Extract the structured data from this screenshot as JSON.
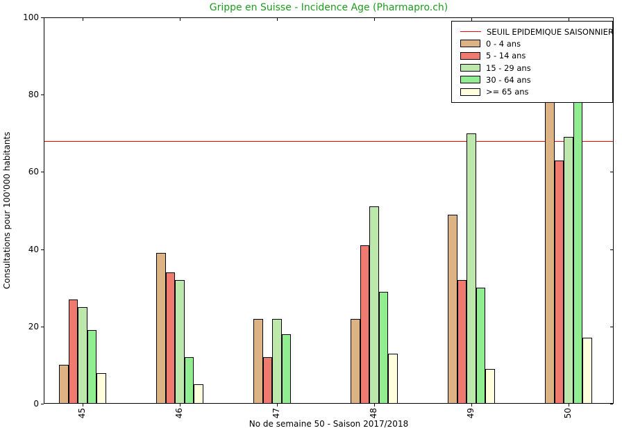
{
  "window": {
    "title": "Grippe en Suisse - Incidence Age (Pharmapro.ch)",
    "title_color": "#1e9b1e"
  },
  "chart_data": {
    "type": "bar",
    "title": "Grippe en Suisse - Incidence Age (Pharmapro.ch)",
    "xlabel": "No de semaine 50 - Saison 2017/2018",
    "ylabel": "Consultations pour 100'000 habitants",
    "categories": [
      "45",
      "46",
      "47",
      "48",
      "49",
      "50"
    ],
    "series": [
      {
        "name": "0 - 4 ans",
        "color": "#DDB284",
        "values": [
          10,
          39,
          22,
          22,
          49,
          85
        ]
      },
      {
        "name": "5 - 14 ans",
        "color": "#EE7A70",
        "values": [
          27,
          34,
          12,
          41,
          32,
          63
        ]
      },
      {
        "name": "15 - 29 ans",
        "color": "#BCE8AC",
        "values": [
          25,
          32,
          22,
          51,
          70,
          69
        ]
      },
      {
        "name": "30 - 64 ans",
        "color": "#90EE90",
        "values": [
          19,
          12,
          18,
          29,
          30,
          85
        ]
      },
      {
        "name": ">= 65 ans",
        "color": "#FFFFDE",
        "values": [
          8,
          5,
          0,
          13,
          9,
          17
        ]
      }
    ],
    "threshold": {
      "label": "SEUIL EPIDEMIQUE SAISONNIER",
      "value": 68,
      "color": "#FF0000"
    },
    "ylim": [
      0,
      100
    ],
    "yticks": [
      0,
      20,
      40,
      60,
      80,
      100
    ],
    "grid": false,
    "legend_position": "upper right",
    "occlusion_note": "Week 50 bar tops for '0 - 4 ans' and '30 - 64 ans' are hidden behind the legend box (values >= 79, estimated 85)"
  }
}
